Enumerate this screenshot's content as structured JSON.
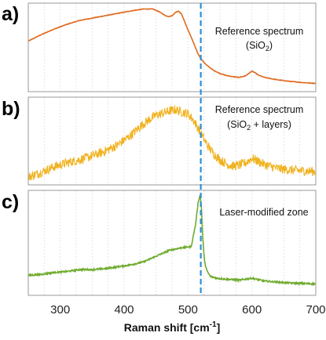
{
  "chart_data": {
    "type": "line",
    "xlabel": "Raman shift [cm-1]",
    "xlim": [
      250,
      700
    ],
    "xticks": [
      300,
      400,
      500,
      600,
      700
    ],
    "grid": "vertical dotted",
    "marker_line": {
      "x": 520,
      "style": "dashed",
      "color": "#2e8fd6"
    },
    "panels": [
      {
        "label": "a)",
        "annotation_lines": [
          "Reference spectrum",
          "(SiO2)"
        ],
        "color": "#e06a1f",
        "noise": 0.003,
        "ylim": [
          0,
          1
        ],
        "x": [
          250,
          270,
          290,
          310,
          330,
          350,
          370,
          390,
          410,
          430,
          445,
          455,
          465,
          470,
          475,
          480,
          485,
          490,
          495,
          500,
          505,
          510,
          515,
          520,
          525,
          530,
          540,
          550,
          560,
          570,
          580,
          590,
          595,
          600,
          605,
          610,
          620,
          640,
          660,
          680,
          700
        ],
        "y": [
          0.58,
          0.66,
          0.73,
          0.79,
          0.84,
          0.87,
          0.9,
          0.93,
          0.96,
          0.985,
          0.985,
          0.95,
          0.9,
          0.89,
          0.9,
          0.94,
          0.96,
          0.92,
          0.82,
          0.72,
          0.63,
          0.53,
          0.43,
          0.36,
          0.31,
          0.27,
          0.21,
          0.17,
          0.145,
          0.13,
          0.12,
          0.14,
          0.17,
          0.2,
          0.18,
          0.15,
          0.12,
          0.09,
          0.07,
          0.055,
          0.045
        ]
      },
      {
        "label": "b)",
        "annotation_lines": [
          "Reference spectrum",
          "(SiO2 + layers)"
        ],
        "color": "#f0b21e",
        "noise": 0.06,
        "ylim": [
          0,
          1
        ],
        "x": [
          250,
          260,
          270,
          290,
          310,
          330,
          350,
          370,
          390,
          410,
          430,
          450,
          470,
          480,
          490,
          500,
          510,
          520,
          530,
          540,
          550,
          560,
          570,
          580,
          590,
          600,
          610,
          620,
          640,
          660,
          680,
          700
        ],
        "y": [
          0.04,
          0.07,
          0.1,
          0.17,
          0.22,
          0.26,
          0.31,
          0.37,
          0.45,
          0.57,
          0.72,
          0.83,
          0.88,
          0.9,
          0.87,
          0.85,
          0.75,
          0.6,
          0.45,
          0.34,
          0.26,
          0.21,
          0.18,
          0.19,
          0.22,
          0.28,
          0.24,
          0.2,
          0.15,
          0.13,
          0.12,
          0.11
        ]
      },
      {
        "label": "c)",
        "annotation_lines": [
          "Laser-modified zone"
        ],
        "color": "#6fab2e",
        "noise": 0.008,
        "ylim": [
          0,
          1
        ],
        "x": [
          250,
          270,
          290,
          310,
          330,
          350,
          370,
          390,
          410,
          430,
          450,
          470,
          490,
          505,
          512,
          516,
          519,
          521,
          523,
          526,
          530,
          535,
          545,
          560,
          580,
          600,
          620,
          640,
          660,
          680,
          700
        ],
        "y": [
          0.16,
          0.17,
          0.19,
          0.2,
          0.22,
          0.22,
          0.23,
          0.25,
          0.27,
          0.3,
          0.36,
          0.42,
          0.45,
          0.46,
          0.7,
          0.93,
          1.0,
          0.88,
          0.55,
          0.3,
          0.2,
          0.15,
          0.13,
          0.12,
          0.11,
          0.13,
          0.1,
          0.09,
          0.08,
          0.075,
          0.07
        ]
      }
    ]
  },
  "labels": {
    "axis_title_main": "Raman shift [cm",
    "axis_title_sup": "-1",
    "axis_title_end": "]",
    "ref_a_line1": "Reference spectrum",
    "ref_a_line2_pre": "(SiO",
    "ref_a_line2_sub": "2",
    "ref_a_line2_post": ")",
    "ref_b_line1": "Reference spectrum",
    "ref_b_line2_pre": "(SiO",
    "ref_b_line2_sub": "2",
    "ref_b_line2_post": " + layers)",
    "ref_c_line1": "Laser-modified zone"
  }
}
